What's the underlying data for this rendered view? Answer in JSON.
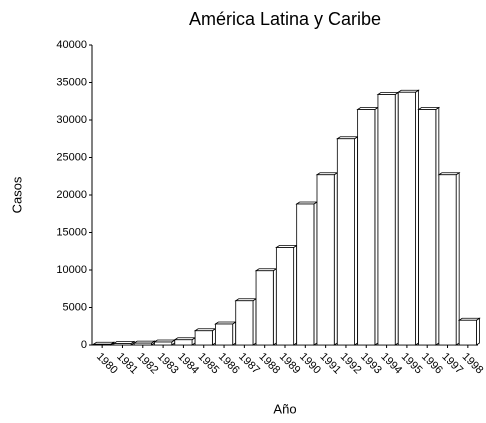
{
  "chart_data": {
    "type": "bar",
    "title": "América Latina y Caribe",
    "x_label": "Año",
    "y_label": "Casos",
    "categories": [
      "1980",
      "1981",
      "1982",
      "1983",
      "1984",
      "1985",
      "1986",
      "1987",
      "1988",
      "1989",
      "1990",
      "1991",
      "1992",
      "1993",
      "1994",
      "1995",
      "1996",
      "1997",
      "1998"
    ],
    "values": [
      100,
      200,
      250,
      400,
      700,
      1900,
      2800,
      5900,
      9900,
      13000,
      18800,
      22700,
      27500,
      31400,
      33400,
      33700,
      31400,
      22700,
      3300
    ],
    "color": "#ffffff",
    "ylim": [
      0,
      40000
    ],
    "yticks": [
      0,
      5000,
      10000,
      15000,
      20000,
      25000,
      30000,
      35000,
      40000
    ],
    "grid": false
  }
}
